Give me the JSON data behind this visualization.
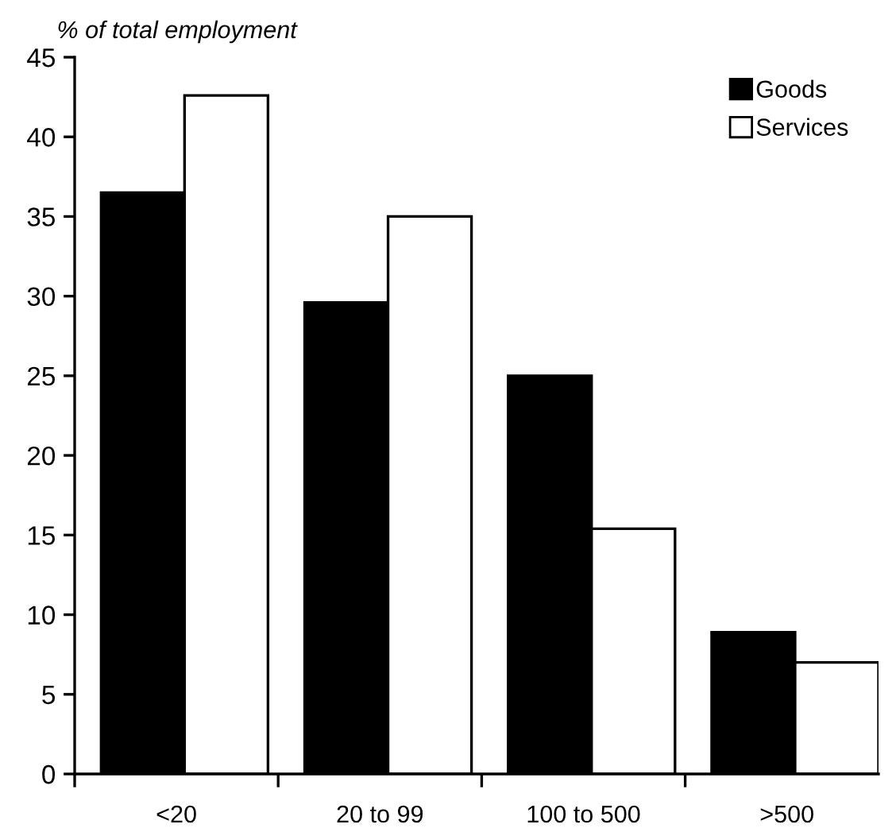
{
  "chart_data": {
    "type": "bar",
    "ylabel": "% of total employment",
    "categories": [
      "<20",
      "20 to 99",
      "100 to 500",
      ">500"
    ],
    "series": [
      {
        "name": "Goods",
        "color": "#000000",
        "values": [
          36.5,
          29.6,
          25.0,
          8.9
        ]
      },
      {
        "name": "Services",
        "color": "#ffffff",
        "values": [
          42.6,
          35.0,
          15.4,
          7.0
        ]
      }
    ],
    "ylim": [
      0,
      45
    ],
    "yticks": [
      0,
      5,
      10,
      15,
      20,
      25,
      30,
      35,
      40,
      45
    ],
    "grid": false,
    "legend": "top right"
  }
}
